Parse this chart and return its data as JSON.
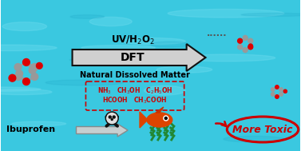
{
  "background_color": "#3ac8e0",
  "arrow_label": "DFT",
  "subtitle": "Natural Dissolved Matter",
  "chemicals_line1": "NH$_3$   CH$_3$OH   C$_2$H$_5$OH",
  "chemicals_line2": "HCOOH   CH$_3$COOH",
  "ibuprofen_label": "Ibuprofen",
  "more_toxic_label": "More Toxic",
  "dots": "......",
  "arrow_fill": "#d0d0d0",
  "arrow_edge": "#111111",
  "chem_box_color": "#cc0000",
  "text_color_black": "#000000",
  "text_color_red": "#cc0000",
  "mol_atom_gray": "#999999",
  "mol_atom_red": "#dd0000",
  "fish_color": "#dd4400",
  "green_color": "#228833",
  "water_highlight": "#70ddf0",
  "water_shadow": "#20a8c8"
}
